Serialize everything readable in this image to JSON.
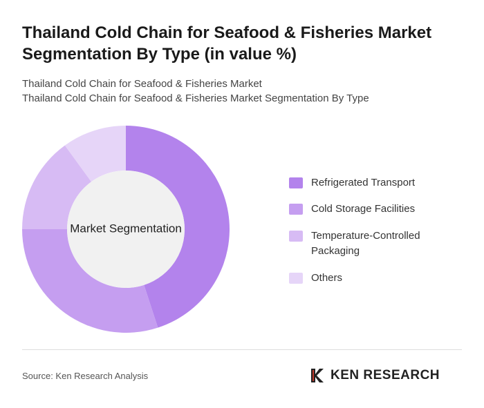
{
  "chart_data": {
    "type": "donut",
    "title": "Thailand Cold Chain for Seafood & Fisheries Market Segmentation By Type (in value %)",
    "subtitles": [
      "Thailand Cold Chain for Seafood & Fisheries Market",
      "Thailand Cold Chain for Seafood & Fisheries Market Segmentation By Type"
    ],
    "center_label": "Market Segmentation",
    "categories": [
      "Refrigerated Transport",
      "Cold Storage Facilities",
      "Temperature-Controlled Packaging",
      "Others"
    ],
    "values": [
      45,
      30,
      15,
      10
    ],
    "colors": [
      "#b383ec",
      "#c59ef0",
      "#d7bbf4",
      "#e6d5f8"
    ]
  },
  "footer": {
    "source": "Source: Ken Research Analysis",
    "logo": "KEN RESEARCH"
  }
}
